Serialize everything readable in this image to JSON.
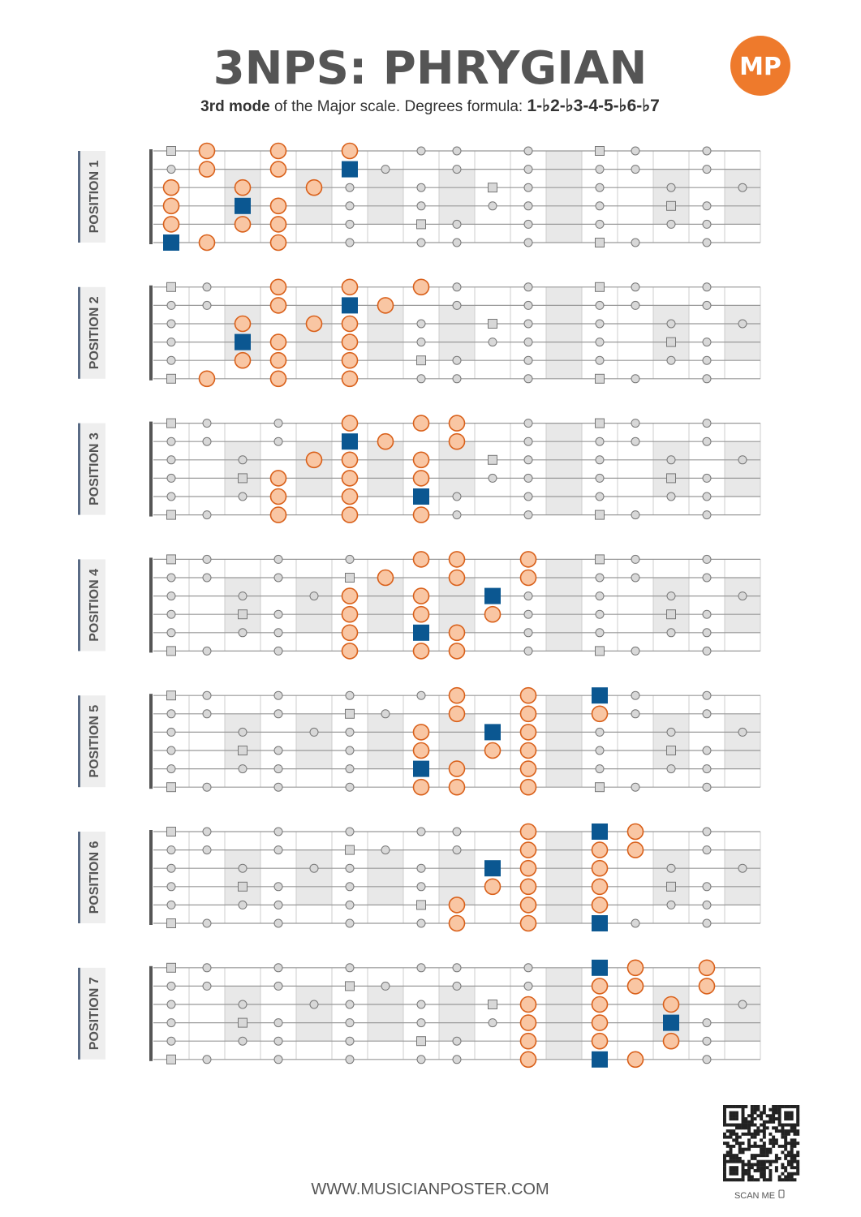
{
  "header": {
    "title": "3NPS: PHRYGIAN",
    "subtitle_bold": "3rd mode",
    "subtitle_text": " of the Major scale. Degrees formula: ",
    "formula": "1-♭2-♭3-4-5-♭6-♭7",
    "logo": "MP"
  },
  "positions": [
    {
      "label": "POSITION 1"
    },
    {
      "label": "POSITION 2"
    },
    {
      "label": "POSITION 3"
    },
    {
      "label": "POSITION 4"
    },
    {
      "label": "POSITION 5"
    },
    {
      "label": "POSITION 6"
    },
    {
      "label": "POSITION 7"
    }
  ],
  "footer": {
    "url": "WWW.MUSICIANPOSTER.COM",
    "scan": "SCAN ME"
  }
}
